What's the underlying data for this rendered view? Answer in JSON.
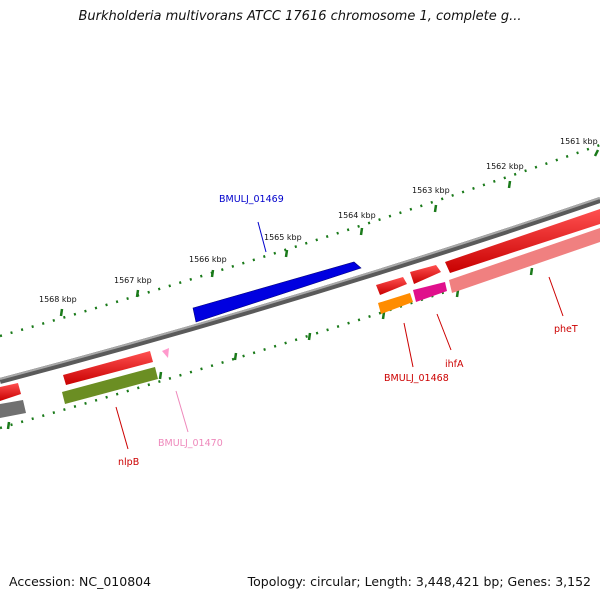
{
  "title": "Burkholderia multivorans ATCC 17616 chromosome 1, complete g...",
  "footer": {
    "accession": "Accession: NC_010804",
    "summary": "Topology: circular; Length: 3,448,421 bp; Genes: 3,152"
  },
  "ruler": {
    "unit": "kbp",
    "ticks": [
      "1561 kbp",
      "1562 kbp",
      "1563 kbp",
      "1564 kbp",
      "1565 kbp",
      "1566 kbp",
      "1567 kbp",
      "1568 kbp"
    ]
  },
  "genes": [
    {
      "label": "BMULJ_01469",
      "strand": "forward",
      "color": "#0000cc",
      "label_color": "#0000cc"
    },
    {
      "label": "BMULJ_01468",
      "strand": "reverse",
      "color": "#ff8c00",
      "label_color": "#cc0000"
    },
    {
      "label": "ihfA",
      "strand": "reverse",
      "color": "#e0108c",
      "label_color": "#cc0000"
    },
    {
      "label": "pheT",
      "strand": "reverse",
      "color": "#f08080",
      "label_color": "#cc0000"
    },
    {
      "label": "nlpB",
      "strand": "reverse",
      "color": "#6b8e23",
      "label_color": "#cc0000"
    },
    {
      "label": "BMULJ_01470",
      "strand": "reverse",
      "color": "#ff99cc",
      "label_color": "#ee88bb"
    }
  ],
  "colors": {
    "backbone": "#808080",
    "ruler_ticks": "#1a7a1a",
    "cds_forward": "#ff0000",
    "grey_feature": "#707070"
  }
}
